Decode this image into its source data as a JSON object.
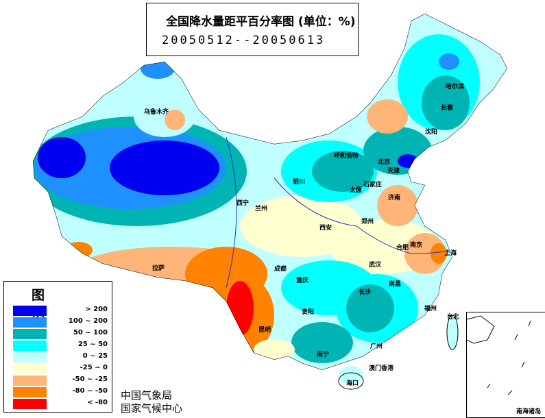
{
  "title": "全国降水量距平百分率图 (单位：%)",
  "date_range": "20050512--20050613",
  "legend": {
    "title": "图 例",
    "items": [
      {
        "label": "> 200",
        "color": "#0000f0"
      },
      {
        "label": "100 ~ 200",
        "color": "#1e90ff"
      },
      {
        "label": "50 ~ 100",
        "color": "#00b4b4"
      },
      {
        "label": "25 ~ 50",
        "color": "#00ffff"
      },
      {
        "label": "0 ~ 25",
        "color": "#c0ffff"
      },
      {
        "label": "-25 ~ 0",
        "color": "#ffffd0"
      },
      {
        "label": "-50 ~ -25",
        "color": "#ffb478"
      },
      {
        "label": "-80 ~ -50",
        "color": "#ff8200"
      },
      {
        "label": "< -80",
        "color": "#ff0000"
      }
    ]
  },
  "agency": [
    "中国气象局",
    "国家气候中心"
  ],
  "cities": [
    "乌鲁木齐",
    "拉萨",
    "西宁",
    "兰州",
    "银川",
    "呼和浩特",
    "北京",
    "天津",
    "石家庄",
    "太原",
    "济南",
    "郑州",
    "西安",
    "成都",
    "重庆",
    "武汉",
    "合肥",
    "南京",
    "上海",
    "长沙",
    "南昌",
    "福州",
    "台北",
    "贵阳",
    "昆明",
    "南宁",
    "广州",
    "澳门香港",
    "海口",
    "哈尔滨",
    "长春",
    "沈阳"
  ],
  "inset_label": "南海诸岛"
}
